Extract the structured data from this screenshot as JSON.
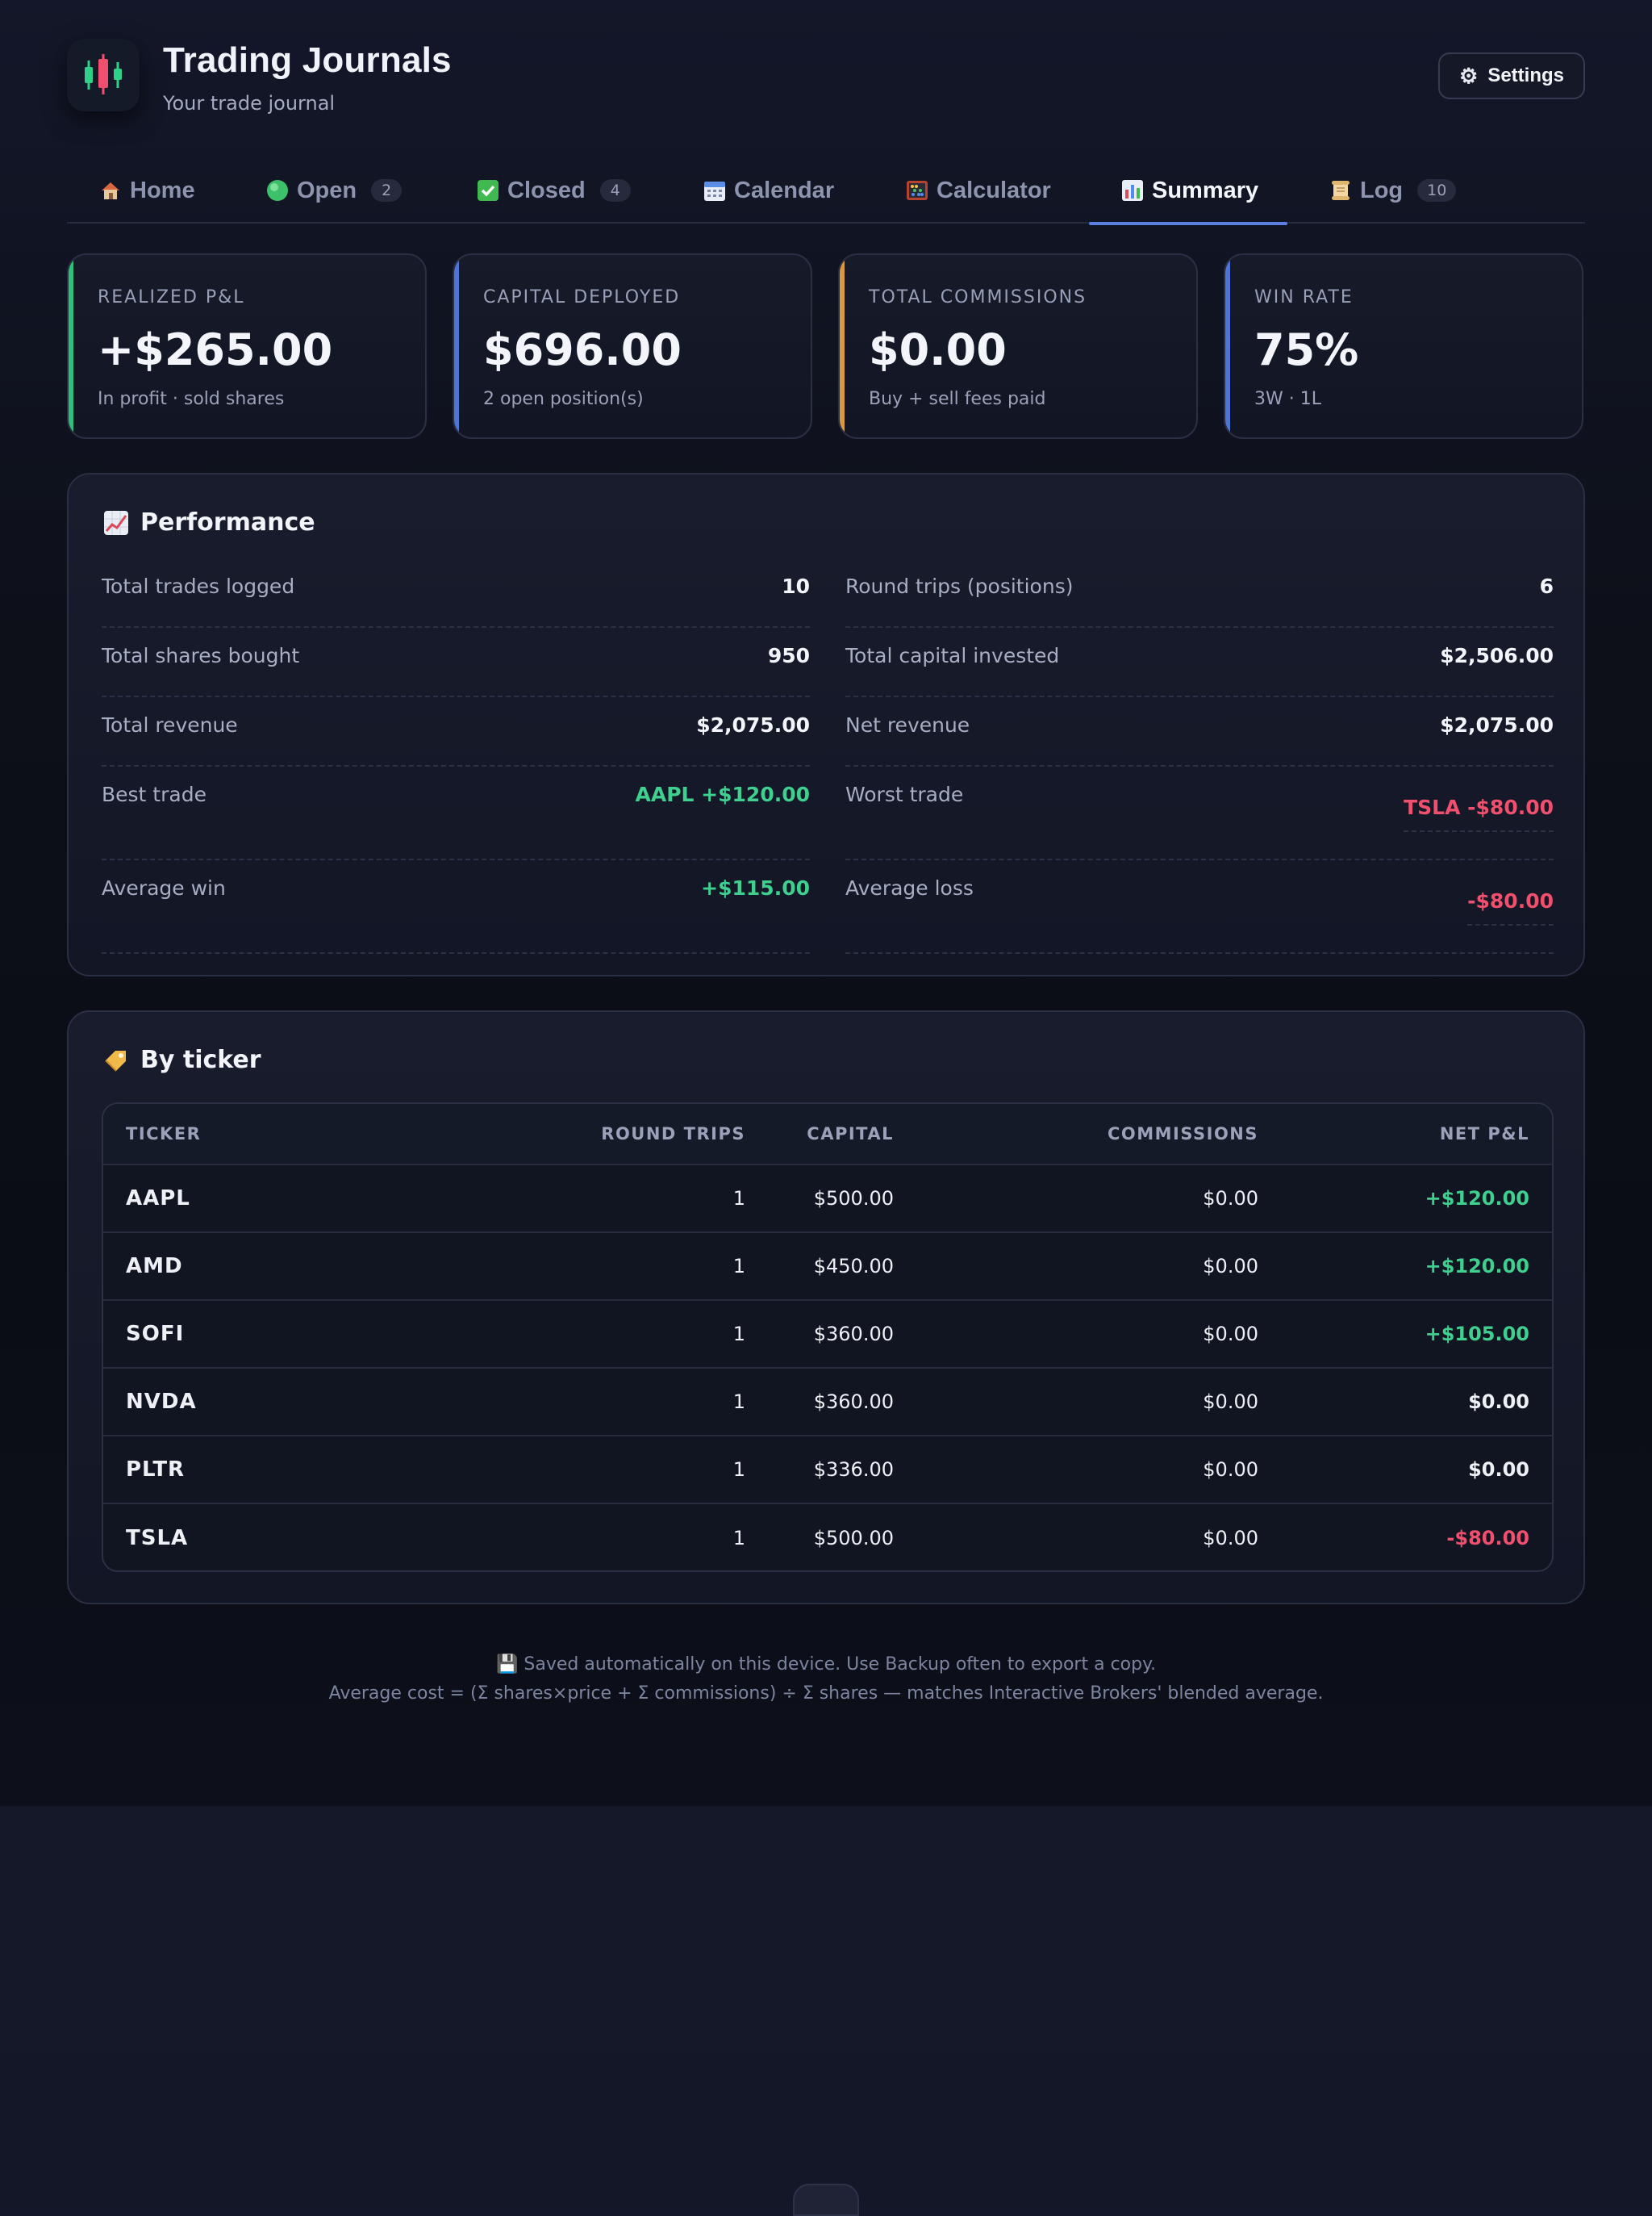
{
  "app": {
    "title": "Trading Journals",
    "subtitle": "Your trade journal",
    "settings_label": "Settings"
  },
  "tabs": [
    {
      "label": "Home",
      "icon": "house-icon"
    },
    {
      "label": "Open",
      "icon": "green-circle-icon",
      "badge": "2"
    },
    {
      "label": "Closed",
      "icon": "check-box-icon",
      "badge": "4"
    },
    {
      "label": "Calendar",
      "icon": "calendar-icon"
    },
    {
      "label": "Calculator",
      "icon": "abacus-icon"
    },
    {
      "label": "Summary",
      "icon": "bar-chart-icon",
      "active": true
    },
    {
      "label": "Log",
      "icon": "scroll-icon",
      "badge": "10"
    }
  ],
  "stats": [
    {
      "label": "REALIZED P&L",
      "value": "+$265.00",
      "sub": "In profit · sold shares",
      "accent": "#2fbf7a"
    },
    {
      "label": "CAPITAL DEPLOYED",
      "value": "$696.00",
      "sub": "2 open position(s)",
      "accent": "#4e74d6"
    },
    {
      "label": "TOTAL COMMISSIONS",
      "value": "$0.00",
      "sub": "Buy + sell fees paid",
      "accent": "#d99a3e"
    },
    {
      "label": "WIN RATE",
      "value": "75%",
      "sub": "3W · 1L",
      "accent": "#4e74d6"
    }
  ],
  "performance": {
    "title": "Performance",
    "left": [
      {
        "label": "Total trades logged",
        "value": "10"
      },
      {
        "label": "Total shares bought",
        "value": "950"
      },
      {
        "label": "Total revenue",
        "value": "$2,075.00"
      },
      {
        "label": "Best trade",
        "value": "AAPL +$120.00"
      },
      {
        "label": "Average win",
        "value": "+$115.00"
      }
    ],
    "right": [
      {
        "label": "Round trips (positions)",
        "value": "6"
      },
      {
        "label": "Total capital invested",
        "value": "$2,506.00"
      },
      {
        "label": "Net revenue",
        "value": "$2,075.00"
      },
      {
        "label": "Worst trade",
        "value": "TSLA -$80.00"
      },
      {
        "label": "Average loss",
        "value": "-$80.00"
      }
    ]
  },
  "by_ticker": {
    "title": "By ticker",
    "columns": [
      "TICKER",
      "ROUND TRIPS",
      "CAPITAL",
      "COMMISSIONS",
      "NET P&L"
    ],
    "rows": [
      {
        "ticker": "AAPL",
        "trips": "1",
        "capital": "$500.00",
        "commissions": "$0.00",
        "pnl": "+$120.00",
        "tone": "pos"
      },
      {
        "ticker": "AMD",
        "trips": "1",
        "capital": "$450.00",
        "commissions": "$0.00",
        "pnl": "+$120.00",
        "tone": "pos"
      },
      {
        "ticker": "SOFI",
        "trips": "1",
        "capital": "$360.00",
        "commissions": "$0.00",
        "pnl": "+$105.00",
        "tone": "pos"
      },
      {
        "ticker": "NVDA",
        "trips": "1",
        "capital": "$360.00",
        "commissions": "$0.00",
        "pnl": "$0.00",
        "tone": "flat"
      },
      {
        "ticker": "PLTR",
        "trips": "1",
        "capital": "$336.00",
        "commissions": "$0.00",
        "pnl": "$0.00",
        "tone": "flat"
      },
      {
        "ticker": "TSLA",
        "trips": "1",
        "capital": "$500.00",
        "commissions": "$0.00",
        "pnl": "-$80.00",
        "tone": "neg"
      }
    ]
  },
  "footer": {
    "line1": "💾 Saved automatically on this device. Use Backup often to export a copy.",
    "line2": "Average cost = (Σ shares×price + Σ commissions) ÷ Σ shares — matches Interactive Brokers' blended average."
  },
  "colors": {
    "positive": "#3fcf8e",
    "negative": "#f0506e",
    "accent": "#5b7fe0"
  }
}
